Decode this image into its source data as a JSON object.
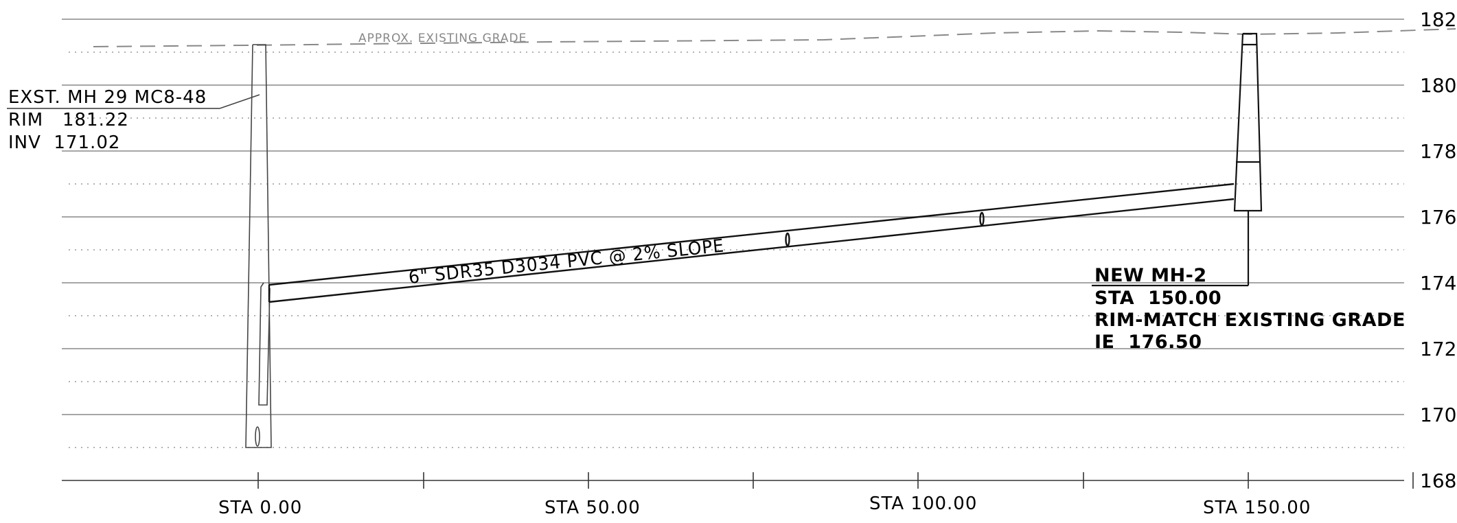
{
  "profile": {
    "elevation_labels": [
      "182",
      "180",
      "178",
      "176",
      "174",
      "172",
      "170",
      "168"
    ],
    "station_labels": [
      "STA  0.00",
      "STA  50.00",
      "STA  100.00",
      "STA  150.00"
    ],
    "grade_label": "APPROX. EXISTING GRADE",
    "pipe_label": "6\"  SDR35  D3034  PVC  @  2%  SLOPE",
    "existing_mh": {
      "line1": "EXST. MH 29 MC8-48",
      "line2": "RIM   181.22",
      "line3": "INV  171.02"
    },
    "new_mh": {
      "line1": "NEW MH-2",
      "line2": "STA  150.00",
      "line3": "RIM-MATCH EXISTING GRADE",
      "line4": "IE  176.50"
    }
  }
}
